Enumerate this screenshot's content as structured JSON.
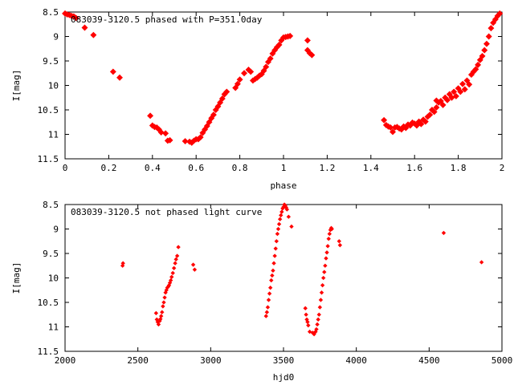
{
  "chart_data": [
    {
      "type": "scatter",
      "title": "083039-3120.5 phased with P=351.0day",
      "xlabel": "phase",
      "ylabel": "I[mag]",
      "xlim": [
        0,
        2
      ],
      "ylim": [
        11.5,
        8.5
      ],
      "y_inverted": true,
      "xticks": [
        0,
        0.2,
        0.4,
        0.6,
        0.8,
        1,
        1.2,
        1.4,
        1.6,
        1.8,
        2
      ],
      "xtick_labels": [
        "0",
        "0.2",
        "0.4",
        "0.6",
        "0.8",
        "1",
        "1.2",
        "1.4",
        "1.6",
        "1.8",
        "2"
      ],
      "yticks": [
        8.5,
        9,
        9.5,
        10,
        10.5,
        11,
        11.5
      ],
      "ytick_labels": [
        "8.5",
        "9",
        "9.5",
        "10",
        "10.5",
        "11",
        "11.5"
      ],
      "grid": false,
      "legend": "none",
      "marker_color": "#ff0000",
      "series": [
        {
          "points": [
            [
              0.0,
              8.53
            ],
            [
              0.01,
              8.55
            ],
            [
              0.02,
              8.56
            ],
            [
              0.03,
              8.58
            ],
            [
              0.04,
              8.59
            ],
            [
              0.05,
              8.62
            ],
            [
              0.09,
              8.82
            ],
            [
              0.13,
              8.97
            ],
            [
              0.22,
              9.72
            ],
            [
              0.25,
              9.84
            ],
            [
              0.39,
              10.62
            ],
            [
              0.4,
              10.82
            ],
            [
              0.41,
              10.85
            ],
            [
              0.42,
              10.86
            ],
            [
              0.43,
              10.9
            ],
            [
              0.44,
              10.96
            ],
            [
              0.46,
              10.98
            ],
            [
              0.47,
              11.13
            ],
            [
              0.48,
              11.12
            ],
            [
              0.55,
              11.14
            ],
            [
              0.57,
              11.15
            ],
            [
              0.58,
              11.17
            ],
            [
              0.59,
              11.13
            ],
            [
              0.6,
              11.1
            ],
            [
              0.61,
              11.1
            ],
            [
              0.62,
              11.06
            ],
            [
              0.63,
              10.97
            ],
            [
              0.64,
              10.9
            ],
            [
              0.65,
              10.83
            ],
            [
              0.66,
              10.75
            ],
            [
              0.67,
              10.67
            ],
            [
              0.68,
              10.6
            ],
            [
              0.69,
              10.5
            ],
            [
              0.7,
              10.43
            ],
            [
              0.71,
              10.35
            ],
            [
              0.72,
              10.27
            ],
            [
              0.73,
              10.18
            ],
            [
              0.74,
              10.13
            ],
            [
              0.78,
              10.05
            ],
            [
              0.79,
              9.97
            ],
            [
              0.8,
              9.88
            ],
            [
              0.82,
              9.75
            ],
            [
              0.84,
              9.68
            ],
            [
              0.85,
              9.72
            ],
            [
              0.86,
              9.9
            ],
            [
              0.87,
              9.87
            ],
            [
              0.88,
              9.84
            ],
            [
              0.89,
              9.8
            ],
            [
              0.9,
              9.77
            ],
            [
              0.91,
              9.7
            ],
            [
              0.92,
              9.62
            ],
            [
              0.93,
              9.52
            ],
            [
              0.94,
              9.45
            ],
            [
              0.95,
              9.35
            ],
            [
              0.96,
              9.28
            ],
            [
              0.97,
              9.22
            ],
            [
              0.98,
              9.17
            ],
            [
              0.99,
              9.08
            ],
            [
              1.0,
              9.02
            ],
            [
              1.01,
              9.01
            ],
            [
              1.02,
              9.0
            ],
            [
              1.03,
              8.99
            ],
            [
              1.11,
              9.08
            ],
            [
              1.11,
              9.28
            ],
            [
              1.12,
              9.34
            ],
            [
              1.13,
              9.38
            ],
            [
              1.46,
              10.71
            ],
            [
              1.47,
              10.81
            ],
            [
              1.48,
              10.84
            ],
            [
              1.49,
              10.86
            ],
            [
              1.5,
              10.95
            ],
            [
              1.51,
              10.86
            ],
            [
              1.52,
              10.85
            ],
            [
              1.53,
              10.88
            ],
            [
              1.54,
              10.9
            ],
            [
              1.55,
              10.84
            ],
            [
              1.56,
              10.87
            ],
            [
              1.57,
              10.8
            ],
            [
              1.58,
              10.82
            ],
            [
              1.59,
              10.76
            ],
            [
              1.6,
              10.78
            ],
            [
              1.61,
              10.82
            ],
            [
              1.62,
              10.74
            ],
            [
              1.63,
              10.79
            ],
            [
              1.64,
              10.7
            ],
            [
              1.65,
              10.74
            ],
            [
              1.66,
              10.64
            ],
            [
              1.67,
              10.6
            ],
            [
              1.68,
              10.5
            ],
            [
              1.69,
              10.54
            ],
            [
              1.7,
              10.45
            ],
            [
              1.7,
              10.31
            ],
            [
              1.71,
              10.35
            ],
            [
              1.72,
              10.32
            ],
            [
              1.73,
              10.4
            ],
            [
              1.74,
              10.25
            ],
            [
              1.75,
              10.3
            ],
            [
              1.76,
              10.18
            ],
            [
              1.77,
              10.25
            ],
            [
              1.78,
              10.13
            ],
            [
              1.79,
              10.22
            ],
            [
              1.8,
              10.06
            ],
            [
              1.81,
              10.13
            ],
            [
              1.82,
              9.97
            ],
            [
              1.83,
              10.08
            ],
            [
              1.84,
              9.9
            ],
            [
              1.85,
              9.98
            ],
            [
              1.86,
              9.78
            ],
            [
              1.87,
              9.72
            ],
            [
              1.88,
              9.67
            ],
            [
              1.89,
              9.58
            ],
            [
              1.9,
              9.48
            ],
            [
              1.91,
              9.4
            ],
            [
              1.92,
              9.28
            ],
            [
              1.93,
              9.15
            ],
            [
              1.94,
              9.0
            ],
            [
              1.95,
              8.83
            ],
            [
              1.96,
              8.72
            ],
            [
              1.97,
              8.65
            ],
            [
              1.98,
              8.58
            ],
            [
              1.99,
              8.53
            ]
          ]
        }
      ]
    },
    {
      "type": "scatter",
      "title": "083039-3120.5 not phased light curve",
      "xlabel": "hjd0",
      "ylabel": "I[mag]",
      "xlim": [
        2000,
        5000
      ],
      "ylim": [
        11.5,
        8.5
      ],
      "y_inverted": true,
      "xticks": [
        2000,
        2500,
        3000,
        3500,
        4000,
        4500,
        5000
      ],
      "xtick_labels": [
        "2000",
        "2500",
        "3000",
        "3500",
        "4000",
        "4500",
        "5000"
      ],
      "yticks": [
        8.5,
        9,
        9.5,
        10,
        10.5,
        11,
        11.5
      ],
      "ytick_labels": [
        "8.5",
        "9",
        "9.5",
        "10",
        "10.5",
        "11",
        "11.5"
      ],
      "grid": false,
      "legend": "none",
      "marker_color": "#ff0000",
      "series": [
        {
          "points": [
            [
              2395,
              9.75
            ],
            [
              2398,
              9.7
            ],
            [
              2625,
              10.72
            ],
            [
              2630,
              10.85
            ],
            [
              2636,
              10.9
            ],
            [
              2642,
              10.95
            ],
            [
              2650,
              10.88
            ],
            [
              2655,
              10.84
            ],
            [
              2660,
              10.78
            ],
            [
              2666,
              10.7
            ],
            [
              2672,
              10.58
            ],
            [
              2678,
              10.5
            ],
            [
              2684,
              10.4
            ],
            [
              2690,
              10.3
            ],
            [
              2696,
              10.25
            ],
            [
              2702,
              10.2
            ],
            [
              2708,
              10.18
            ],
            [
              2714,
              10.15
            ],
            [
              2720,
              10.1
            ],
            [
              2726,
              10.05
            ],
            [
              2732,
              9.98
            ],
            [
              2740,
              9.9
            ],
            [
              2748,
              9.8
            ],
            [
              2756,
              9.7
            ],
            [
              2762,
              9.62
            ],
            [
              2770,
              9.55
            ],
            [
              2778,
              9.37
            ],
            [
              2880,
              9.73
            ],
            [
              2890,
              9.83
            ],
            [
              3380,
              10.78
            ],
            [
              3386,
              10.7
            ],
            [
              3392,
              10.6
            ],
            [
              3398,
              10.45
            ],
            [
              3404,
              10.32
            ],
            [
              3410,
              10.2
            ],
            [
              3416,
              10.05
            ],
            [
              3422,
              9.95
            ],
            [
              3428,
              9.85
            ],
            [
              3434,
              9.7
            ],
            [
              3440,
              9.55
            ],
            [
              3446,
              9.4
            ],
            [
              3452,
              9.25
            ],
            [
              3458,
              9.1
            ],
            [
              3464,
              9.0
            ],
            [
              3470,
              8.9
            ],
            [
              3476,
              8.8
            ],
            [
              3482,
              8.72
            ],
            [
              3488,
              8.65
            ],
            [
              3494,
              8.58
            ],
            [
              3500,
              8.55
            ],
            [
              3506,
              8.5
            ],
            [
              3512,
              8.52
            ],
            [
              3518,
              8.56
            ],
            [
              3524,
              8.6
            ],
            [
              3535,
              8.75
            ],
            [
              3555,
              8.95
            ],
            [
              3650,
              10.62
            ],
            [
              3655,
              10.75
            ],
            [
              3660,
              10.85
            ],
            [
              3665,
              10.9
            ],
            [
              3670,
              10.97
            ],
            [
              3680,
              11.1
            ],
            [
              3700,
              11.12
            ],
            [
              3710,
              11.15
            ],
            [
              3720,
              11.1
            ],
            [
              3726,
              11.05
            ],
            [
              3732,
              10.95
            ],
            [
              3738,
              10.85
            ],
            [
              3744,
              10.75
            ],
            [
              3750,
              10.6
            ],
            [
              3756,
              10.45
            ],
            [
              3762,
              10.3
            ],
            [
              3768,
              10.15
            ],
            [
              3774,
              10.0
            ],
            [
              3780,
              9.88
            ],
            [
              3786,
              9.75
            ],
            [
              3792,
              9.6
            ],
            [
              3798,
              9.48
            ],
            [
              3804,
              9.35
            ],
            [
              3810,
              9.2
            ],
            [
              3816,
              9.1
            ],
            [
              3822,
              9.02
            ],
            [
              3828,
              8.98
            ],
            [
              3832,
              9.0
            ],
            [
              3882,
              9.25
            ],
            [
              3888,
              9.33
            ],
            [
              4600,
              9.08
            ],
            [
              4860,
              9.68
            ]
          ]
        }
      ]
    }
  ]
}
